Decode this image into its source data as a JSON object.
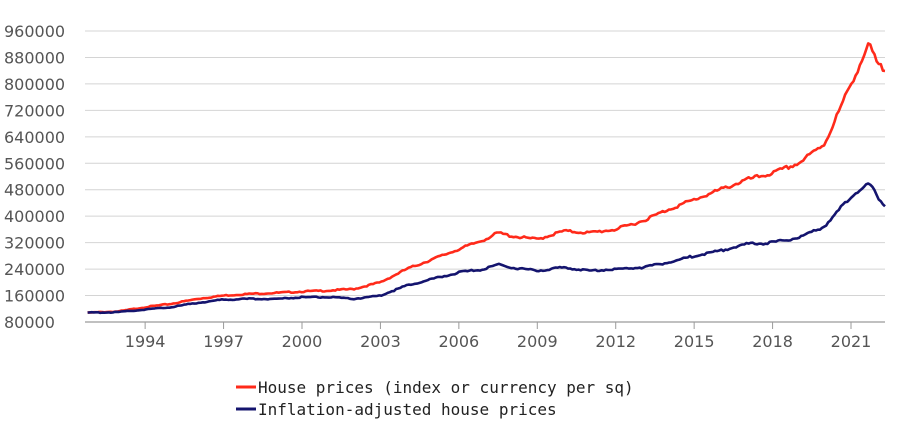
{
  "chart_data": {
    "type": "line",
    "title": "",
    "xlabel": "",
    "ylabel": "",
    "xlim": [
      1991.7,
      2022.3
    ],
    "ylim": [
      80000,
      960000
    ],
    "yticks": [
      80000,
      160000,
      240000,
      320000,
      400000,
      480000,
      560000,
      640000,
      720000,
      800000,
      880000,
      960000
    ],
    "ytick_labels": [
      "80000",
      "160000",
      "240000",
      "320000",
      "400000",
      "480000",
      "560000",
      "640000",
      "720000",
      "800000",
      "880000",
      "960000"
    ],
    "xticks": [
      1994,
      1997,
      2000,
      2003,
      2006,
      2009,
      2012,
      2015,
      2018,
      2021
    ],
    "xtick_labels": [
      "1994",
      "1997",
      "2000",
      "2003",
      "2006",
      "2009",
      "2012",
      "2015",
      "2018",
      "2021"
    ],
    "grid": true,
    "legend_position": "bottom",
    "series": [
      {
        "name": "House prices (index or currency per sq)",
        "color": "#ff2a1a",
        "x": [
          1991.8,
          1993,
          1994,
          1995,
          1996,
          1997,
          1998,
          1999,
          2000,
          2001,
          2002,
          2003,
          2004,
          2005,
          2006,
          2007,
          2007.5,
          2008,
          2009,
          2010,
          2011,
          2012,
          2013,
          2014,
          2015,
          2016,
          2017,
          2018,
          2019,
          2020,
          2021,
          2021.7,
          2022,
          2022.3
        ],
        "y": [
          108000,
          112000,
          125000,
          135000,
          150000,
          160000,
          165000,
          168000,
          172000,
          175000,
          180000,
          200000,
          240000,
          270000,
          300000,
          330000,
          350000,
          340000,
          330000,
          355000,
          350000,
          360000,
          385000,
          420000,
          450000,
          480000,
          510000,
          530000,
          560000,
          620000,
          800000,
          920000,
          860000,
          840000
        ]
      },
      {
        "name": "Inflation-adjusted house prices",
        "color": "#14146e",
        "x": [
          1991.8,
          1993,
          1994,
          1995,
          1996,
          1997,
          1998,
          1999,
          2000,
          2001,
          2002,
          2003,
          2004,
          2005,
          2006,
          2007,
          2007.5,
          2008,
          2009,
          2010,
          2011,
          2012,
          2013,
          2014,
          2015,
          2016,
          2017,
          2018,
          2019,
          2020,
          2021,
          2021.7,
          2022,
          2022.3
        ],
        "y": [
          108000,
          110000,
          118000,
          125000,
          138000,
          148000,
          150000,
          150000,
          155000,
          155000,
          150000,
          160000,
          190000,
          210000,
          230000,
          240000,
          255000,
          245000,
          235000,
          245000,
          235000,
          240000,
          245000,
          260000,
          280000,
          295000,
          315000,
          320000,
          335000,
          370000,
          460000,
          500000,
          460000,
          430000
        ]
      }
    ]
  }
}
